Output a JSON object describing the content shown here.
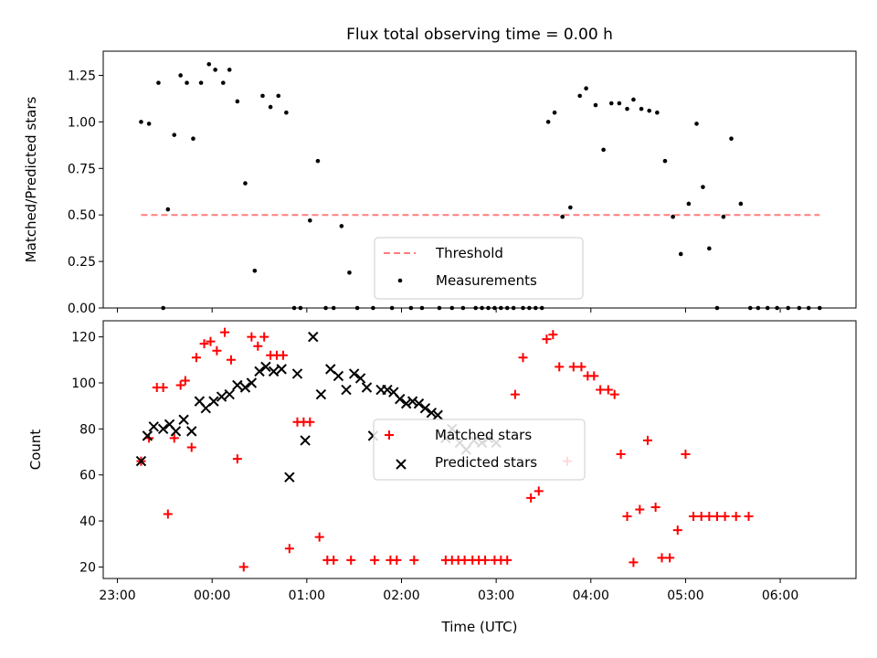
{
  "title": "Flux total observing time = 0.00 h",
  "chart_data": [
    {
      "type": "scatter",
      "panel": "top",
      "title": "Flux total observing time = 0.00 h",
      "xlabel": "",
      "ylabel": "Matched/Predicted stars",
      "xlim": [
        "22:51",
        "06:48"
      ],
      "ylim": [
        0,
        1.38
      ],
      "yticks": [
        0,
        0.25,
        0.5,
        0.75,
        1.0,
        1.25
      ],
      "ytick_labels": [
        "0.00",
        "0.25",
        "0.50",
        "0.75",
        "1.00",
        "1.25"
      ],
      "legend": {
        "placement": "lower center",
        "entries": [
          "Threshold",
          "Measurements"
        ]
      },
      "threshold": {
        "name": "Threshold",
        "color": "#ff7f7f",
        "style": "dashed",
        "value": 0.5,
        "x": [
          "23:15",
          "06:25"
        ]
      },
      "series": [
        {
          "name": "Measurements",
          "color": "#000000",
          "marker": "dot",
          "points": [
            [
              "23:15",
              1.0
            ],
            [
              "23:20",
              0.99
            ],
            [
              "23:26",
              1.21
            ],
            [
              "23:29",
              0.0
            ],
            [
              "23:32",
              0.53
            ],
            [
              "23:36",
              0.93
            ],
            [
              "23:40",
              1.25
            ],
            [
              "23:44",
              1.21
            ],
            [
              "23:48",
              0.91
            ],
            [
              "23:53",
              1.21
            ],
            [
              "23:58",
              1.31
            ],
            [
              "00:02",
              1.28
            ],
            [
              "00:07",
              1.21
            ],
            [
              "00:11",
              1.28
            ],
            [
              "00:16",
              1.11
            ],
            [
              "00:21",
              0.67
            ],
            [
              "00:27",
              0.2
            ],
            [
              "00:32",
              1.14
            ],
            [
              "00:37",
              1.08
            ],
            [
              "00:42",
              1.14
            ],
            [
              "00:47",
              1.05
            ],
            [
              "00:52",
              0.0
            ],
            [
              "00:56",
              0.0
            ],
            [
              "01:02",
              0.47
            ],
            [
              "01:07",
              0.79
            ],
            [
              "01:12",
              0.0
            ],
            [
              "01:17",
              0.0
            ],
            [
              "01:22",
              0.44
            ],
            [
              "01:27",
              0.19
            ],
            [
              "01:32",
              0.0
            ],
            [
              "01:42",
              0.0
            ],
            [
              "01:54",
              0.0
            ],
            [
              "02:06",
              0.0
            ],
            [
              "02:13",
              0.0
            ],
            [
              "02:24",
              0.0
            ],
            [
              "02:32",
              0.0
            ],
            [
              "02:39",
              0.0
            ],
            [
              "02:47",
              0.0
            ],
            [
              "02:51",
              0.0
            ],
            [
              "02:55",
              0.0
            ],
            [
              "02:59",
              0.0
            ],
            [
              "03:03",
              0.0
            ],
            [
              "03:07",
              0.0
            ],
            [
              "03:11",
              0.0
            ],
            [
              "03:17",
              0.0
            ],
            [
              "03:21",
              0.0
            ],
            [
              "03:25",
              0.0
            ],
            [
              "03:29",
              0.0
            ],
            [
              "03:33",
              1.0
            ],
            [
              "03:37",
              1.05
            ],
            [
              "03:42",
              0.49
            ],
            [
              "03:47",
              0.54
            ],
            [
              "03:53",
              1.14
            ],
            [
              "03:57",
              1.18
            ],
            [
              "04:03",
              1.09
            ],
            [
              "04:08",
              0.85
            ],
            [
              "04:13",
              1.1
            ],
            [
              "04:18",
              1.1
            ],
            [
              "04:23",
              1.07
            ],
            [
              "04:27",
              1.12
            ],
            [
              "04:32",
              1.07
            ],
            [
              "04:37",
              1.06
            ],
            [
              "04:42",
              1.05
            ],
            [
              "04:47",
              0.79
            ],
            [
              "04:52",
              0.49
            ],
            [
              "04:57",
              0.29
            ],
            [
              "05:02",
              0.56
            ],
            [
              "05:07",
              0.99
            ],
            [
              "05:11",
              0.65
            ],
            [
              "05:15",
              0.32
            ],
            [
              "05:20",
              0.0
            ],
            [
              "05:24",
              0.49
            ],
            [
              "05:29",
              0.91
            ],
            [
              "05:35",
              0.56
            ],
            [
              "05:41",
              0.0
            ],
            [
              "05:46",
              0.0
            ],
            [
              "05:52",
              0.0
            ],
            [
              "05:58",
              0.0
            ],
            [
              "06:05",
              0.0
            ],
            [
              "06:12",
              0.0
            ],
            [
              "06:18",
              0.0
            ],
            [
              "06:25",
              0.0
            ]
          ]
        }
      ]
    },
    {
      "type": "scatter",
      "panel": "bottom",
      "xlabel": "Time (UTC)",
      "ylabel": "Count",
      "xlim": [
        "22:51",
        "06:48"
      ],
      "xticks": [
        "23:00",
        "00:00",
        "01:00",
        "02:00",
        "03:00",
        "04:00",
        "05:00",
        "06:00"
      ],
      "ylim": [
        15,
        127
      ],
      "yticks": [
        20,
        40,
        60,
        80,
        100,
        120
      ],
      "legend": {
        "placement": "center",
        "entries": [
          "Matched stars",
          "Predicted stars"
        ]
      },
      "series": [
        {
          "name": "Matched stars",
          "color": "#ff0000",
          "marker": "plus",
          "points": [
            [
              "23:15",
              66
            ],
            [
              "23:20",
              76
            ],
            [
              "23:25",
              98
            ],
            [
              "23:29",
              98
            ],
            [
              "23:32",
              43
            ],
            [
              "23:36",
              76
            ],
            [
              "23:40",
              99
            ],
            [
              "23:43",
              101
            ],
            [
              "23:47",
              72
            ],
            [
              "23:50",
              111
            ],
            [
              "23:55",
              117
            ],
            [
              "23:59",
              118
            ],
            [
              "00:03",
              114
            ],
            [
              "00:08",
              122
            ],
            [
              "00:12",
              110
            ],
            [
              "00:16",
              67
            ],
            [
              "00:20",
              20
            ],
            [
              "00:25",
              120
            ],
            [
              "00:29",
              116
            ],
            [
              "00:33",
              120
            ],
            [
              "00:37",
              112
            ],
            [
              "00:41",
              112
            ],
            [
              "00:45",
              112
            ],
            [
              "00:49",
              28
            ],
            [
              "00:54",
              83
            ],
            [
              "00:58",
              83
            ],
            [
              "01:02",
              83
            ],
            [
              "01:08",
              33
            ],
            [
              "01:13",
              23
            ],
            [
              "01:17",
              23
            ],
            [
              "01:28",
              23
            ],
            [
              "01:43",
              23
            ],
            [
              "01:53",
              23
            ],
            [
              "01:57",
              23
            ],
            [
              "02:08",
              23
            ],
            [
              "02:28",
              23
            ],
            [
              "02:32",
              23
            ],
            [
              "02:36",
              23
            ],
            [
              "02:40",
              23
            ],
            [
              "02:45",
              23
            ],
            [
              "02:49",
              23
            ],
            [
              "02:53",
              23
            ],
            [
              "02:59",
              23
            ],
            [
              "03:03",
              23
            ],
            [
              "03:07",
              23
            ],
            [
              "03:12",
              95
            ],
            [
              "03:17",
              111
            ],
            [
              "03:22",
              50
            ],
            [
              "03:27",
              53
            ],
            [
              "03:32",
              119
            ],
            [
              "03:36",
              121
            ],
            [
              "03:40",
              107
            ],
            [
              "03:45",
              66
            ],
            [
              "03:49",
              107
            ],
            [
              "03:54",
              107
            ],
            [
              "03:58",
              103
            ],
            [
              "04:02",
              103
            ],
            [
              "04:06",
              97
            ],
            [
              "04:11",
              97
            ],
            [
              "04:15",
              95
            ],
            [
              "04:19",
              69
            ],
            [
              "04:23",
              42
            ],
            [
              "04:27",
              22
            ],
            [
              "04:31",
              45
            ],
            [
              "04:36",
              75
            ],
            [
              "04:41",
              46
            ],
            [
              "04:45",
              24
            ],
            [
              "04:50",
              24
            ],
            [
              "04:55",
              36
            ],
            [
              "05:00",
              69
            ],
            [
              "05:05",
              42
            ],
            [
              "05:10",
              42
            ],
            [
              "05:15",
              42
            ],
            [
              "05:20",
              42
            ],
            [
              "05:25",
              42
            ],
            [
              "05:32",
              42
            ],
            [
              "05:40",
              42
            ]
          ]
        },
        {
          "name": "Predicted stars",
          "color": "#000000",
          "marker": "x",
          "points": [
            [
              "23:15",
              66
            ],
            [
              "23:19",
              77
            ],
            [
              "23:23",
              81
            ],
            [
              "23:29",
              80
            ],
            [
              "23:33",
              82
            ],
            [
              "23:37",
              79
            ],
            [
              "23:42",
              84
            ],
            [
              "23:47",
              79
            ],
            [
              "23:52",
              92
            ],
            [
              "23:56",
              89
            ],
            [
              "00:01",
              92
            ],
            [
              "00:06",
              94
            ],
            [
              "00:11",
              95
            ],
            [
              "00:16",
              99
            ],
            [
              "00:21",
              98
            ],
            [
              "00:25",
              100
            ],
            [
              "00:30",
              105
            ],
            [
              "00:34",
              107
            ],
            [
              "00:39",
              105
            ],
            [
              "00:44",
              106
            ],
            [
              "00:49",
              59
            ],
            [
              "00:54",
              104
            ],
            [
              "00:59",
              75
            ],
            [
              "01:04",
              120
            ],
            [
              "01:09",
              95
            ],
            [
              "01:15",
              106
            ],
            [
              "01:20",
              103
            ],
            [
              "01:25",
              97
            ],
            [
              "01:30",
              104
            ],
            [
              "01:34",
              102
            ],
            [
              "01:38",
              98
            ],
            [
              "01:42",
              77
            ],
            [
              "01:47",
              97
            ],
            [
              "01:51",
              97
            ],
            [
              "01:55",
              96
            ],
            [
              "01:59",
              93
            ],
            [
              "02:03",
              91
            ],
            [
              "02:07",
              92
            ],
            [
              "02:11",
              91
            ],
            [
              "02:15",
              89
            ],
            [
              "02:19",
              87
            ],
            [
              "02:23",
              86
            ],
            [
              "02:28",
              76
            ],
            [
              "02:32",
              80
            ],
            [
              "02:37",
              74
            ],
            [
              "02:41",
              71
            ],
            [
              "02:46",
              75
            ],
            [
              "02:51",
              74
            ],
            [
              "02:55",
              76
            ],
            [
              "03:00",
              74
            ]
          ]
        }
      ]
    }
  ]
}
